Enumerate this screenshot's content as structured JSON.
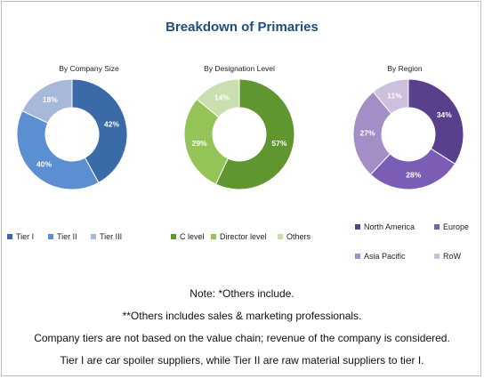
{
  "title": "Breakdown of Primaries",
  "notes": [
    "Note: *Others include.",
    "**Others includes sales & marketing professionals.",
    "Company tiers are not based on the value chain; revenue of the company is considered.",
    "Tier I are car spoiler suppliers, while Tier II are raw material suppliers to tier I."
  ],
  "chart_data": [
    {
      "type": "pie",
      "title": "By Company Size",
      "categories": [
        "Tier I",
        "Tier II",
        "Tier III"
      ],
      "values": [
        42,
        40,
        18
      ],
      "colors": [
        "#3a6aa8",
        "#5b8fd2",
        "#a7b8d8"
      ]
    },
    {
      "type": "pie",
      "title": "By Designation Level",
      "categories": [
        "C level",
        "Director level",
        "Others"
      ],
      "values": [
        57,
        29,
        14
      ],
      "colors": [
        "#5f9630",
        "#94c457",
        "#c9dfb0"
      ]
    },
    {
      "type": "pie",
      "title": "By Region",
      "categories": [
        "North America",
        "Europe",
        "Asia Pacific",
        "RoW"
      ],
      "values": [
        34,
        28,
        27,
        11
      ],
      "colors": [
        "#5a3f8c",
        "#7b5db5",
        "#a38fc6",
        "#ccc0dd"
      ]
    }
  ]
}
